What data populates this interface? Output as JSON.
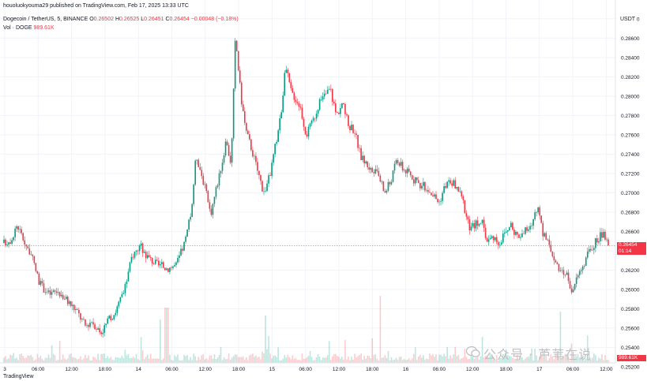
{
  "header": {
    "publish_line": "houoluokyouma29 published on TradingView.com, Feb 17, 2025 13:33 UTC",
    "symbol": "Dogecoin / TetherUS, 5, BINANCE",
    "open_label": "O",
    "open": "0.26502",
    "high_label": "H",
    "high": "0.26525",
    "low_label": "L",
    "low": "0.26451",
    "close_label": "C",
    "close": "0.26454",
    "change": "−0.00048 (−0.18%)",
    "vol_label": "Vol · DOGE",
    "vol_value": "989.61K"
  },
  "currency": "USDT",
  "last_price_tag": {
    "price": "0.26454",
    "countdown": "01:14"
  },
  "volume_tag": "989.61K",
  "watermark": "公众号 · 芦苇在说",
  "footer_logo": "TradingView",
  "colors": {
    "up": "#089981",
    "down": "#f23645",
    "grid": "#f0f3fa",
    "axis_text": "#131722"
  },
  "chart_data": {
    "type": "candlestick",
    "y_axis": {
      "min": 0.2524,
      "max": 0.2888,
      "scale": "linear",
      "position": "right",
      "tick_labels": [
        "0.28800",
        "0.28600",
        "0.28400",
        "0.28200",
        "0.28000",
        "0.27800",
        "0.27600",
        "0.27400",
        "0.27200",
        "0.27000",
        "0.26800",
        "0.26600",
        "0.26400",
        "0.26200",
        "0.26000",
        "0.25800",
        "0.25600",
        "0.25400",
        "0.25200"
      ]
    },
    "x_axis": {
      "tick_labels": [
        "3",
        "06:00",
        "12:00",
        "18:00",
        "14",
        "06:00",
        "12:00",
        "18:00",
        "15",
        "06:00",
        "12:00",
        "18:00",
        "16",
        "06:00",
        "12:00",
        "18:00",
        "17",
        "06:00",
        "12:00"
      ]
    },
    "grid": true,
    "price_path": [
      [
        0,
        0.2648
      ],
      [
        0.012,
        0.2652
      ],
      [
        0.022,
        0.2667
      ],
      [
        0.032,
        0.2652
      ],
      [
        0.045,
        0.2635
      ],
      [
        0.06,
        0.2605
      ],
      [
        0.075,
        0.2595
      ],
      [
        0.09,
        0.2598
      ],
      [
        0.105,
        0.2588
      ],
      [
        0.12,
        0.2578
      ],
      [
        0.135,
        0.2562
      ],
      [
        0.145,
        0.2568
      ],
      [
        0.16,
        0.2555
      ],
      [
        0.17,
        0.2565
      ],
      [
        0.185,
        0.2578
      ],
      [
        0.2,
        0.26
      ],
      [
        0.212,
        0.2635
      ],
      [
        0.225,
        0.2645
      ],
      [
        0.24,
        0.2632
      ],
      [
        0.255,
        0.2625
      ],
      [
        0.27,
        0.2622
      ],
      [
        0.285,
        0.2625
      ],
      [
        0.3,
        0.265
      ],
      [
        0.31,
        0.268
      ],
      [
        0.318,
        0.274
      ],
      [
        0.33,
        0.2712
      ],
      [
        0.342,
        0.2678
      ],
      [
        0.355,
        0.2715
      ],
      [
        0.368,
        0.2752
      ],
      [
        0.376,
        0.273
      ],
      [
        0.383,
        0.2862
      ],
      [
        0.392,
        0.28
      ],
      [
        0.4,
        0.2765
      ],
      [
        0.41,
        0.2745
      ],
      [
        0.42,
        0.2722
      ],
      [
        0.43,
        0.27
      ],
      [
        0.44,
        0.2718
      ],
      [
        0.45,
        0.2752
      ],
      [
        0.458,
        0.278
      ],
      [
        0.466,
        0.283
      ],
      [
        0.475,
        0.2805
      ],
      [
        0.49,
        0.279
      ],
      [
        0.5,
        0.276
      ],
      [
        0.51,
        0.2772
      ],
      [
        0.52,
        0.279
      ],
      [
        0.53,
        0.28
      ],
      [
        0.54,
        0.2808
      ],
      [
        0.55,
        0.278
      ],
      [
        0.56,
        0.2793
      ],
      [
        0.57,
        0.277
      ],
      [
        0.58,
        0.2765
      ],
      [
        0.59,
        0.2738
      ],
      [
        0.6,
        0.273
      ],
      [
        0.61,
        0.2722
      ],
      [
        0.62,
        0.2718
      ],
      [
        0.63,
        0.27
      ],
      [
        0.64,
        0.2712
      ],
      [
        0.65,
        0.2735
      ],
      [
        0.66,
        0.2725
      ],
      [
        0.67,
        0.272
      ],
      [
        0.68,
        0.2712
      ],
      [
        0.69,
        0.2708
      ],
      [
        0.7,
        0.2705
      ],
      [
        0.71,
        0.2698
      ],
      [
        0.72,
        0.269
      ],
      [
        0.73,
        0.2708
      ],
      [
        0.74,
        0.2712
      ],
      [
        0.75,
        0.2705
      ],
      [
        0.76,
        0.269
      ],
      [
        0.77,
        0.2662
      ],
      [
        0.78,
        0.2668
      ],
      [
        0.79,
        0.2672
      ],
      [
        0.8,
        0.265
      ],
      [
        0.81,
        0.2655
      ],
      [
        0.82,
        0.2648
      ],
      [
        0.83,
        0.266
      ],
      [
        0.84,
        0.2665
      ],
      [
        0.85,
        0.2655
      ],
      [
        0.86,
        0.266
      ],
      [
        0.87,
        0.2662
      ],
      [
        0.88,
        0.268
      ],
      [
        0.885,
        0.2688
      ],
      [
        0.89,
        0.266
      ],
      [
        0.9,
        0.2648
      ],
      [
        0.91,
        0.2635
      ],
      [
        0.92,
        0.2615
      ],
      [
        0.93,
        0.2618
      ],
      [
        0.94,
        0.2598
      ],
      [
        0.95,
        0.2615
      ],
      [
        0.96,
        0.2628
      ],
      [
        0.97,
        0.264
      ],
      [
        0.98,
        0.265
      ],
      [
        0.99,
        0.2658
      ],
      [
        1.0,
        0.26454
      ]
    ]
  }
}
